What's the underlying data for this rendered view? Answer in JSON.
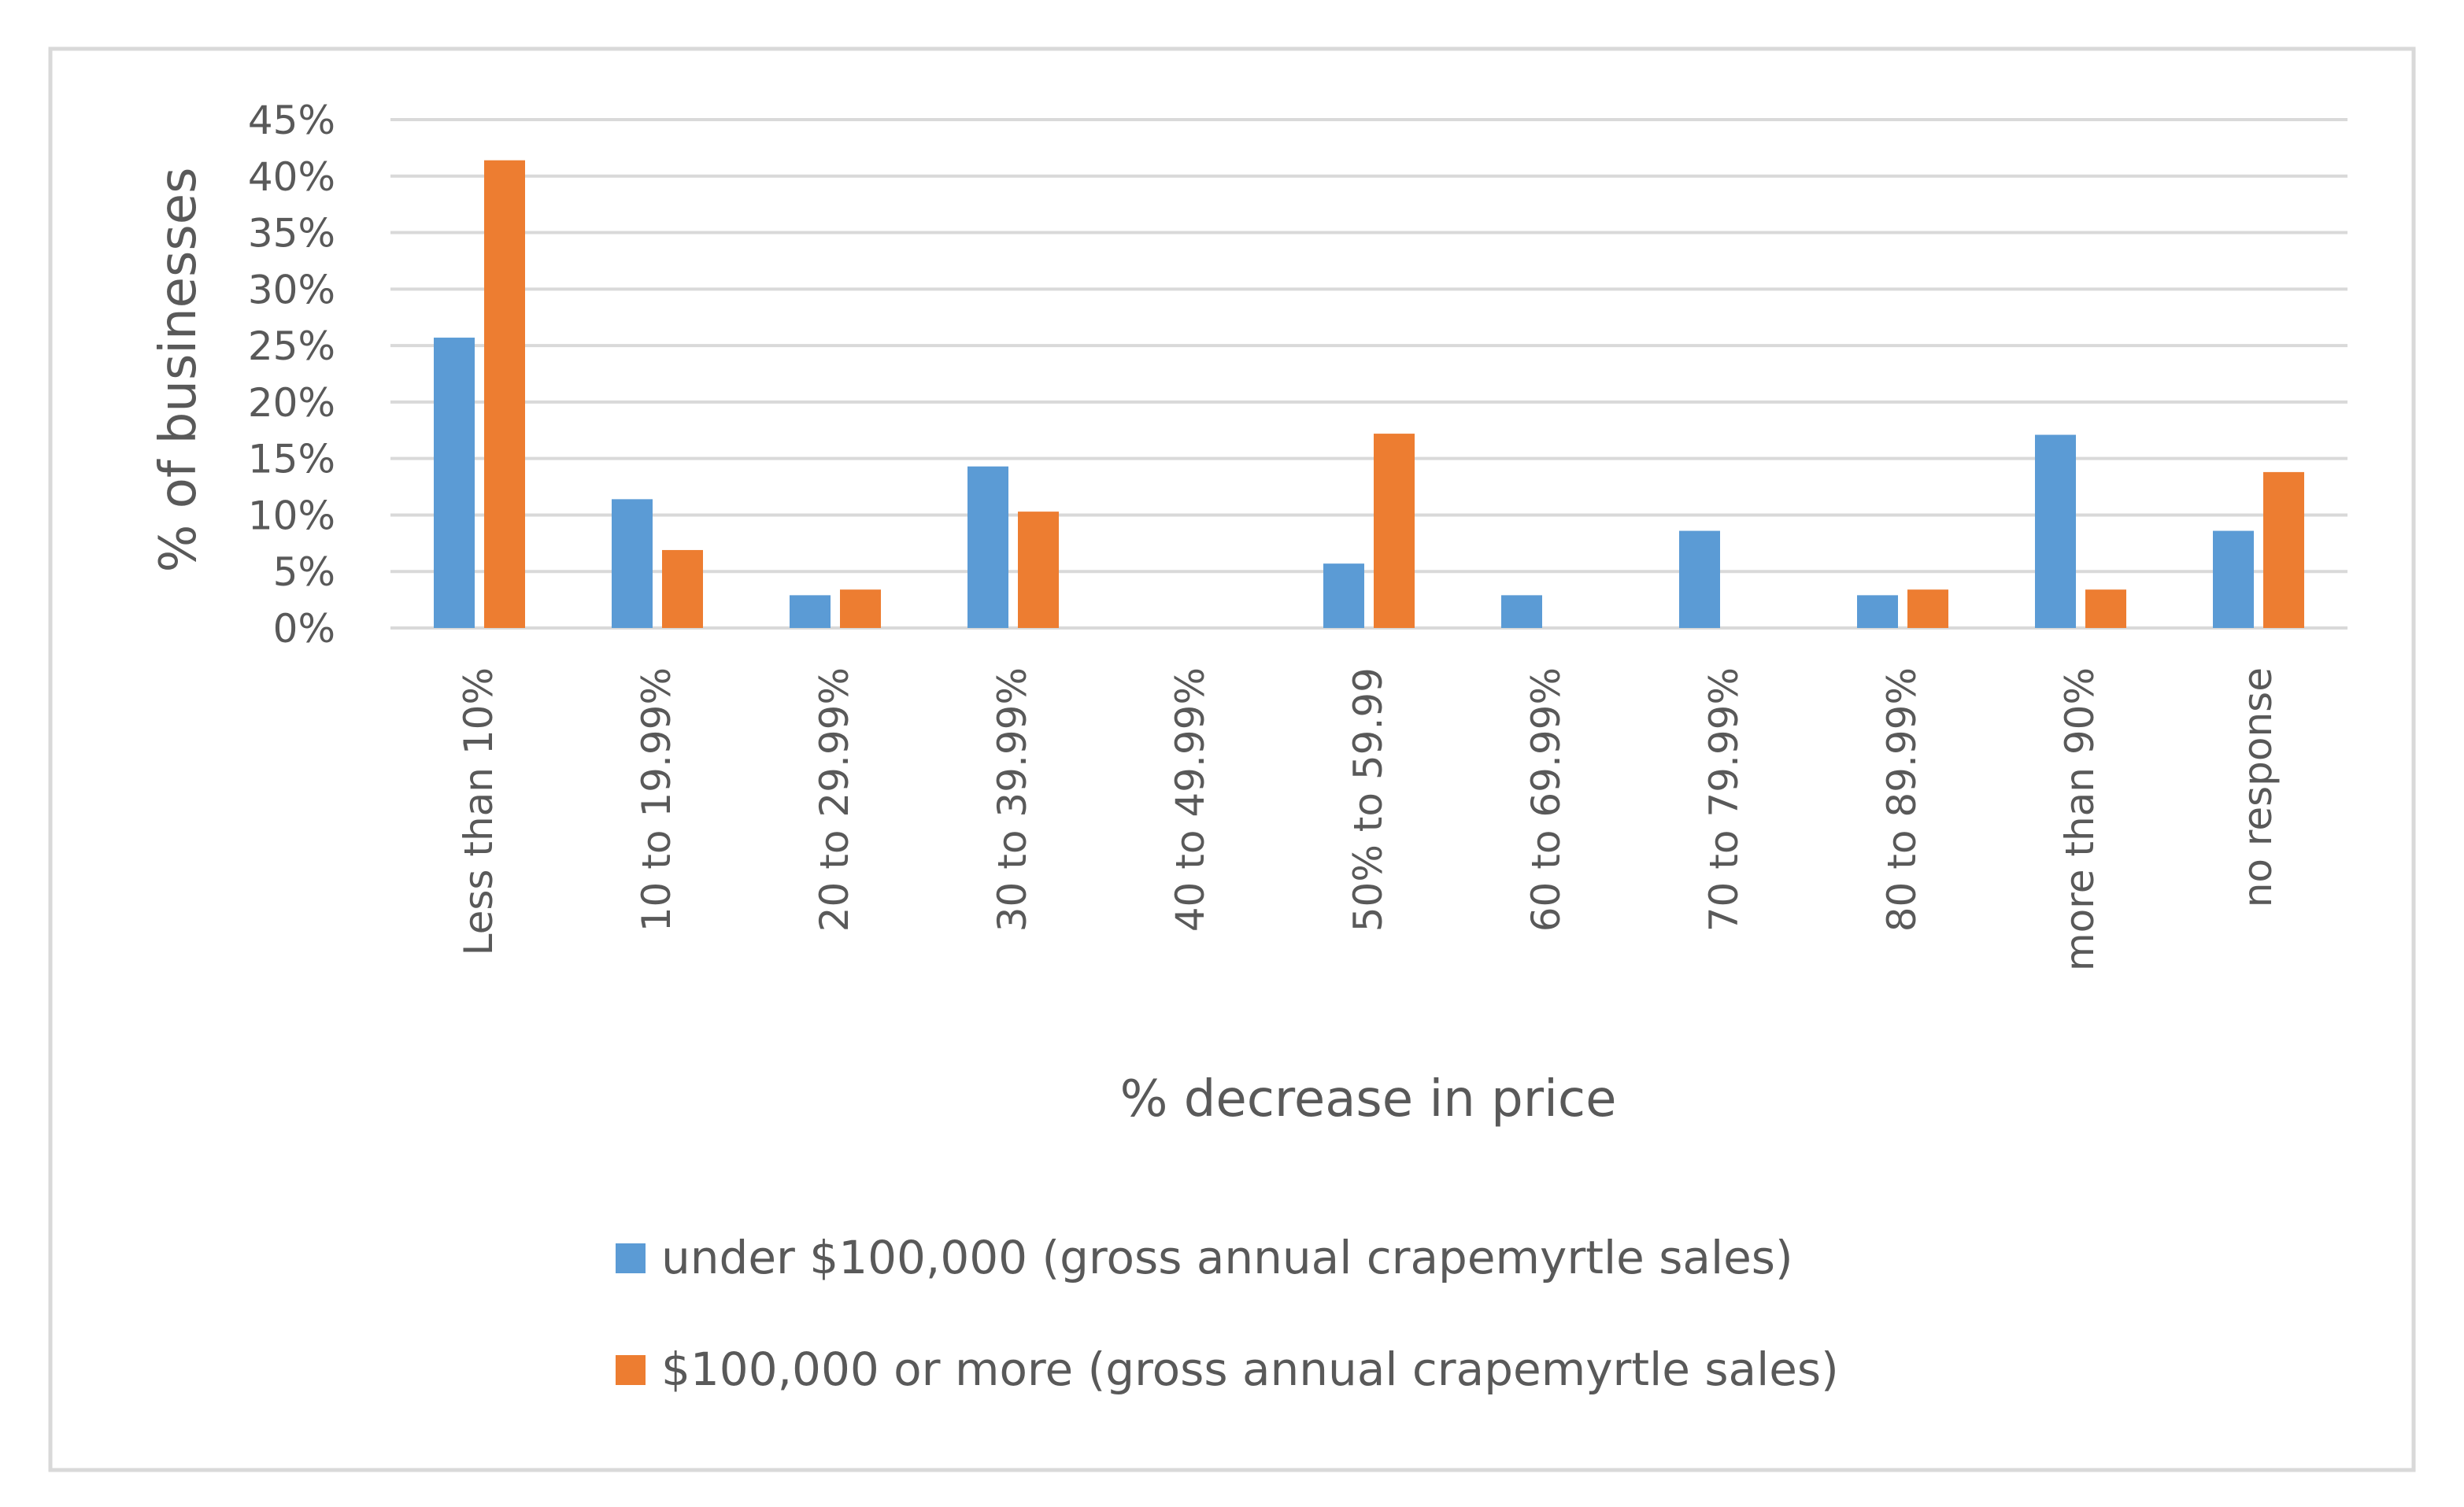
{
  "chart_data": {
    "type": "bar",
    "title": "",
    "xlabel": "% decrease in price",
    "ylabel": "% of businesses",
    "ylim": [
      0,
      45
    ],
    "yticks": [
      "0%",
      "5%",
      "10%",
      "15%",
      "20%",
      "25%",
      "30%",
      "35%",
      "40%",
      "45%"
    ],
    "grid": true,
    "legend_position": "bottom",
    "categories": [
      "Less than 10%",
      "10 to 19.99%",
      "20 to 29.99%",
      "30 to 39.99%",
      "40 to 49.99%",
      "50% to 59.99",
      "60 to 69.99%",
      "70 to 79.99%",
      "80 to 89.99%",
      "more than 90%",
      "no response"
    ],
    "series": [
      {
        "name": "under $100,000 (gross annual crapemyrtle sales)",
        "color": "#5b9bd5",
        "values": [
          25.7,
          11.4,
          2.9,
          14.3,
          0,
          5.7,
          2.9,
          8.6,
          2.9,
          17.1,
          8.6
        ]
      },
      {
        "name": "$100,000 or more (gross annual crapemyrtle sales)",
        "color": "#ed7d31",
        "values": [
          41.4,
          6.9,
          3.4,
          10.3,
          0,
          17.2,
          0,
          0,
          3.4,
          3.4,
          13.8
        ]
      }
    ]
  }
}
